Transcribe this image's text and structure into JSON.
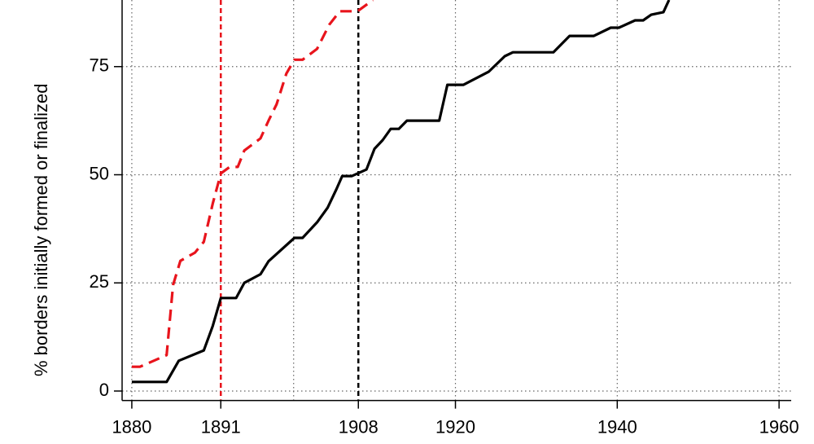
{
  "chart_data": {
    "type": "line",
    "ylabel": "% borders initially formed or finalized",
    "xlim": [
      1878.8,
      1961.5
    ],
    "ylim": [
      -2,
      90.4
    ],
    "xticks": [
      1880,
      1891,
      1908,
      1920,
      1940,
      1960
    ],
    "yticks": [
      0,
      25,
      50,
      75
    ],
    "xgrid": [
      1880,
      1900,
      1920,
      1940,
      1960
    ],
    "grid": true,
    "vlines": [
      {
        "x": 1891,
        "color": "#e8141c",
        "dash": "6,4"
      },
      {
        "x": 1908,
        "color": "#000000",
        "dash": "6,4"
      }
    ],
    "series": [
      {
        "color": "#000000",
        "dash": "none",
        "x": [
          1880,
          1884.3,
          1885.8,
          1888.9,
          1890,
          1891,
          1892.9,
          1893.9,
          1895.9,
          1896.9,
          1900.1,
          1901.1,
          1902.9,
          1904.2,
          1905.3,
          1906,
          1907.2,
          1909,
          1910,
          1911,
          1912,
          1913,
          1914,
          1918,
          1919,
          1921,
          1924.1,
          1926.1,
          1927.1,
          1932.1,
          1934.1,
          1937.1,
          1939.2,
          1940.2,
          1942.2,
          1943.2,
          1944.2,
          1945.7,
          1946.4
        ],
        "values": [
          2.1,
          2.1,
          7,
          9.4,
          15,
          21.5,
          21.5,
          25,
          27,
          30,
          35.4,
          35.4,
          39,
          42.4,
          46.7,
          49.7,
          49.7,
          51.2,
          56,
          58,
          60.6,
          60.6,
          62.5,
          62.5,
          70.8,
          70.8,
          73.8,
          77.4,
          78.3,
          78.3,
          82.1,
          82.1,
          84,
          84,
          85.7,
          85.7,
          87,
          87.6,
          90.4
        ]
      },
      {
        "color": "#e8141c",
        "dash": "14,8",
        "x": [
          1880,
          1881,
          1884.3,
          1885.1,
          1886,
          1887.8,
          1888.9,
          1890,
          1891,
          1892.1,
          1893.1,
          1893.9,
          1895.9,
          1896.9,
          1897.9,
          1899.1,
          1900.1,
          1901.1,
          1902.9,
          1904.4,
          1905.7,
          1907.9,
          1909.8
        ],
        "values": [
          5.6,
          5.6,
          8.3,
          24.5,
          30.1,
          32,
          34.5,
          43.3,
          50.3,
          51.8,
          51.8,
          55.6,
          58.4,
          62.5,
          66.3,
          73.4,
          76.6,
          76.6,
          79.1,
          84.7,
          87.8,
          87.8,
          90.4
        ]
      }
    ]
  }
}
